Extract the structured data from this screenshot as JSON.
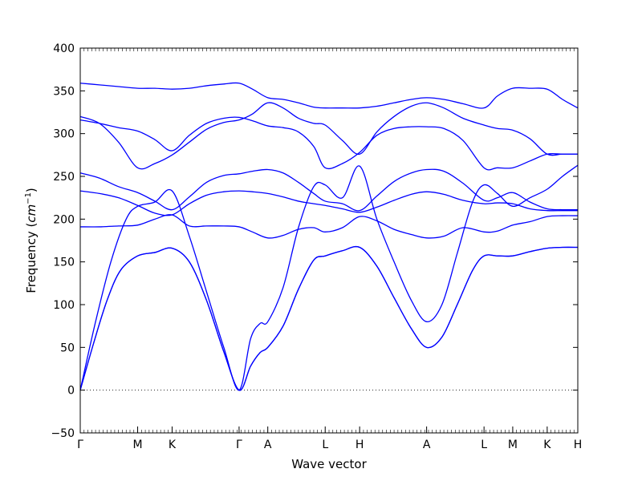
{
  "chart_data": {
    "type": "line",
    "title": "",
    "xlabel": "Wave vector",
    "ylabel_prefix": "Frequency (",
    "ylabel_unit_base": "cm",
    "ylabel_unit_exp": "−1",
    "ylabel_suffix": ")",
    "ylim": [
      -50,
      400
    ],
    "xlim": [
      0,
      13
    ],
    "grid": false,
    "y_ticks": [
      -50,
      0,
      50,
      100,
      150,
      200,
      250,
      300,
      350,
      400
    ],
    "y_tick_labels": [
      "−50",
      "0",
      "50",
      "100",
      "150",
      "200",
      "250",
      "300",
      "350",
      "400"
    ],
    "x_ticks": [
      0,
      1.5,
      2.4,
      4.15,
      4.9,
      6.4,
      7.3,
      9.05,
      10.55,
      11.3,
      12.2,
      13.0
    ],
    "x_tick_labels": [
      "Γ",
      "M",
      "K",
      "Γ",
      "A",
      "L",
      "H",
      "A",
      "L",
      "M",
      "K",
      "H"
    ],
    "zero_line": 0,
    "series": [
      {
        "x": [
          0,
          0.35,
          0.7,
          1.05,
          1.5,
          1.95,
          2.4,
          2.85,
          3.3,
          3.75,
          4.15,
          4.45,
          4.7,
          4.9,
          5.3,
          5.7,
          6.1,
          6.4,
          6.85,
          7.3,
          7.75,
          8.2,
          8.65,
          9.05,
          9.45,
          9.85,
          10.25,
          10.55,
          10.9,
          11.3,
          11.75,
          12.2,
          12.6,
          13.0
        ],
        "values": [
          0,
          55,
          105,
          140,
          157,
          161,
          166,
          150,
          105,
          45,
          0,
          28,
          44,
          50,
          75,
          118,
          152,
          157,
          163,
          167,
          145,
          108,
          72,
          50,
          62,
          100,
          140,
          157,
          157,
          157,
          162,
          166,
          167,
          167
        ]
      },
      {
        "x": [
          0,
          0.35,
          0.7,
          1.05,
          1.5,
          1.95,
          2.4,
          2.85,
          3.3,
          3.75,
          4.15,
          4.45,
          4.7,
          4.9,
          5.3,
          5.7,
          6.1,
          6.4,
          6.85,
          7.3,
          7.75,
          8.2,
          8.65,
          9.05,
          9.45,
          9.85,
          10.25,
          10.55,
          10.9,
          11.3,
          11.75,
          12.2,
          12.6,
          13.0
        ],
        "values": [
          0,
          55,
          105,
          140,
          157,
          161,
          166,
          150,
          105,
          45,
          0,
          28,
          44,
          50,
          75,
          118,
          152,
          157,
          163,
          167,
          145,
          108,
          72,
          50,
          62,
          100,
          140,
          157,
          157,
          157,
          162,
          166,
          167,
          167
        ]
      },
      {
        "x": [
          0,
          0.4,
          0.8,
          1.2,
          1.5,
          1.95,
          2.4,
          2.85,
          3.3,
          3.75,
          4.15,
          4.45,
          4.7,
          4.9,
          5.3,
          5.7,
          6.1,
          6.4,
          6.85,
          7.3,
          7.75,
          8.2,
          8.65,
          9.05,
          9.45,
          9.85,
          10.25,
          10.55,
          10.9,
          11.3,
          11.75,
          12.2,
          12.6,
          13.0
        ],
        "values": [
          0,
          80,
          150,
          200,
          215,
          220,
          233,
          180,
          115,
          50,
          0,
          60,
          78,
          80,
          120,
          190,
          238,
          240,
          225,
          262,
          200,
          150,
          105,
          80,
          100,
          160,
          220,
          240,
          230,
          215,
          225,
          235,
          250,
          263
        ]
      },
      {
        "x": [
          0,
          0.5,
          1.0,
          1.5,
          1.95,
          2.4,
          2.85,
          3.3,
          3.75,
          4.15,
          4.5,
          4.9,
          5.3,
          5.7,
          6.1,
          6.4,
          6.85,
          7.3,
          7.75,
          8.2,
          8.65,
          9.05,
          9.5,
          10.0,
          10.55,
          10.9,
          11.3,
          11.75,
          12.2,
          12.6,
          13.0
        ],
        "values": [
          191,
          191,
          192,
          193,
          200,
          205,
          192,
          192,
          192,
          191,
          185,
          178,
          181,
          188,
          190,
          185,
          190,
          203,
          198,
          188,
          182,
          178,
          180,
          190,
          185,
          186,
          193,
          197,
          203,
          204,
          204
        ]
      },
      {
        "x": [
          0,
          0.5,
          1.0,
          1.5,
          1.95,
          2.4,
          2.85,
          3.3,
          3.75,
          4.15,
          4.5,
          4.9,
          5.3,
          5.7,
          6.1,
          6.4,
          6.85,
          7.3,
          7.75,
          8.2,
          8.65,
          9.05,
          9.5,
          10.0,
          10.55,
          10.9,
          11.3,
          11.75,
          12.2,
          12.6,
          13.0
        ],
        "values": [
          233,
          230,
          225,
          216,
          207,
          205,
          218,
          228,
          232,
          233,
          232,
          230,
          226,
          221,
          218,
          216,
          212,
          208,
          214,
          222,
          229,
          232,
          229,
          222,
          218,
          219,
          218,
          212,
          210,
          210,
          210
        ]
      },
      {
        "x": [
          0,
          0.5,
          1.0,
          1.5,
          1.95,
          2.4,
          2.85,
          3.3,
          3.75,
          4.15,
          4.5,
          4.9,
          5.3,
          5.7,
          6.1,
          6.4,
          6.85,
          7.3,
          7.75,
          8.2,
          8.65,
          9.05,
          9.5,
          10.0,
          10.55,
          10.9,
          11.3,
          11.75,
          12.2,
          12.6,
          13.0
        ],
        "values": [
          254,
          248,
          238,
          231,
          221,
          211,
          226,
          243,
          251,
          253,
          256,
          258,
          254,
          243,
          230,
          221,
          218,
          210,
          227,
          244,
          254,
          258,
          256,
          242,
          222,
          225,
          231,
          220,
          212,
          211,
          211
        ]
      },
      {
        "x": [
          0,
          0.5,
          1.0,
          1.5,
          1.95,
          2.4,
          2.85,
          3.3,
          3.75,
          4.15,
          4.5,
          4.9,
          5.3,
          5.7,
          6.1,
          6.4,
          6.85,
          7.3,
          7.75,
          8.2,
          8.65,
          9.05,
          9.5,
          10.0,
          10.55,
          10.9,
          11.3,
          11.75,
          12.2,
          12.6,
          13.0
        ],
        "values": [
          316,
          312,
          307,
          303,
          293,
          280,
          298,
          312,
          318,
          319,
          315,
          309,
          307,
          302,
          285,
          260,
          265,
          278,
          298,
          306,
          308,
          308,
          306,
          292,
          260,
          260,
          260,
          268,
          276,
          276,
          276
        ]
      },
      {
        "x": [
          0,
          0.5,
          1.0,
          1.5,
          1.95,
          2.4,
          2.85,
          3.3,
          3.75,
          4.15,
          4.5,
          4.9,
          5.3,
          5.7,
          6.1,
          6.4,
          6.85,
          7.3,
          7.75,
          8.2,
          8.65,
          9.05,
          9.5,
          10.0,
          10.55,
          10.9,
          11.3,
          11.75,
          12.2,
          12.6,
          13.0
        ],
        "values": [
          320,
          312,
          290,
          260,
          265,
          275,
          290,
          305,
          313,
          316,
          323,
          336,
          330,
          318,
          312,
          310,
          292,
          276,
          302,
          320,
          332,
          336,
          330,
          318,
          310,
          306,
          304,
          294,
          276,
          276,
          276
        ]
      },
      {
        "x": [
          0,
          0.5,
          1.0,
          1.5,
          1.95,
          2.4,
          2.85,
          3.3,
          3.75,
          4.15,
          4.5,
          4.9,
          5.3,
          5.7,
          6.1,
          6.4,
          6.85,
          7.3,
          7.75,
          8.2,
          8.65,
          9.05,
          9.5,
          10.0,
          10.55,
          10.9,
          11.3,
          11.75,
          12.2,
          12.6,
          13.0
        ],
        "values": [
          359,
          357,
          355,
          353,
          353,
          352,
          353,
          356,
          358,
          359,
          352,
          342,
          340,
          336,
          331,
          330,
          330,
          330,
          332,
          336,
          340,
          342,
          340,
          335,
          330,
          344,
          353,
          353,
          352,
          340,
          330
        ]
      }
    ]
  }
}
